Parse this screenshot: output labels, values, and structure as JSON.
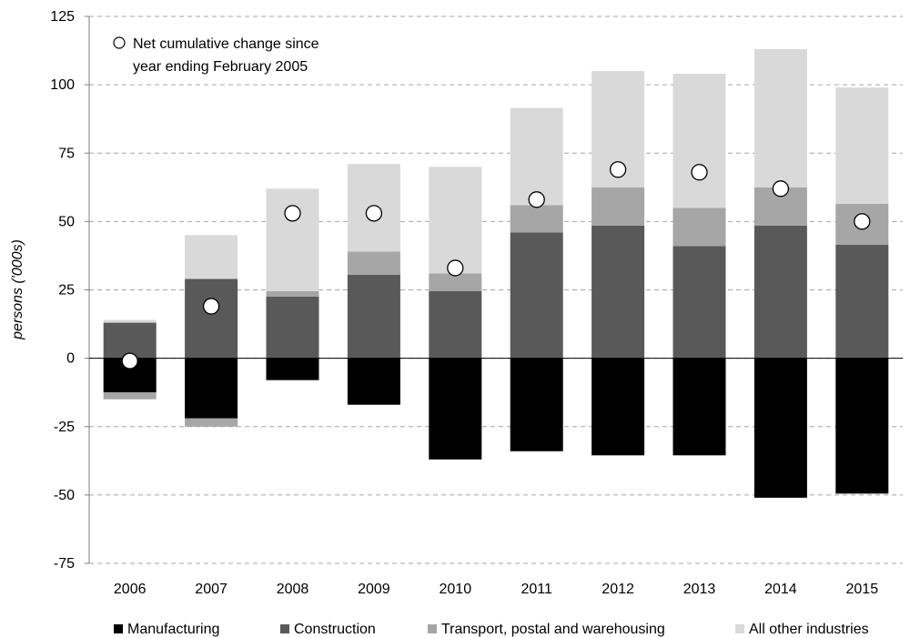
{
  "chart_data": {
    "type": "bar",
    "stacked": true,
    "categories": [
      "2006",
      "2007",
      "2008",
      "2009",
      "2010",
      "2011",
      "2012",
      "2013",
      "2014",
      "2015"
    ],
    "series": [
      {
        "name": "Manufacturing",
        "color": "#000000",
        "values": [
          -12.5,
          -22,
          -8,
          -17,
          -37,
          -34,
          -35.5,
          -35.5,
          -51,
          -49.5
        ]
      },
      {
        "name": "Construction",
        "color": "#595959",
        "values": [
          13,
          29,
          22.5,
          30.5,
          24.5,
          46,
          48.5,
          41,
          48.5,
          41.5
        ]
      },
      {
        "name": "Transport, postal and warehousing",
        "color": "#a6a6a6",
        "values": [
          -2.5,
          -3,
          2,
          8.5,
          6.5,
          10,
          14,
          14,
          14,
          15
        ]
      },
      {
        "name": "All other industries",
        "color": "#d9d9d9",
        "values": [
          1,
          16,
          37.5,
          32,
          39,
          35.5,
          42.5,
          49,
          50.5,
          42.5
        ]
      }
    ],
    "net_cumulative": {
      "label_line1": "Net cumulative change since",
      "label_line2": "year ending February 2005",
      "values": [
        -1,
        19,
        53,
        53,
        33,
        58,
        69,
        68,
        62,
        50
      ]
    },
    "ylabel": "persons ('000s)",
    "ylim": [
      -75,
      125
    ],
    "yticks": [
      -75,
      -50,
      -25,
      0,
      25,
      50,
      75,
      100,
      125
    ],
    "grid": true,
    "legend_position": "bottom"
  }
}
